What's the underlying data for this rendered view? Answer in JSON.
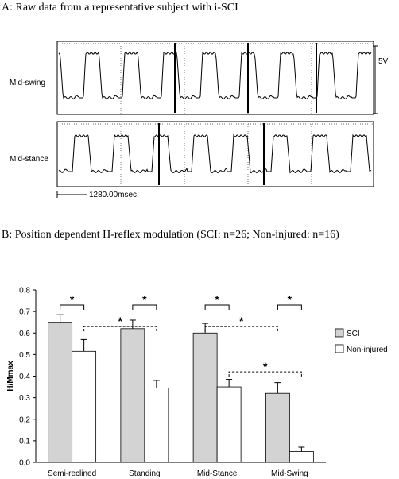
{
  "panel_a": {
    "title": "A: Raw data from a representative subject with i-SCI",
    "top_trace_label": "Mid-swing",
    "bottom_trace_label": "Mid-stance",
    "voltage_scale": "5V",
    "time_scale": "1280.00msec."
  },
  "panel_b": {
    "title": "B: Position dependent H-reflex modulation (SCI: n=26; Non-injured: n=16)"
  },
  "colors": {
    "sci": "#d3d3d3",
    "non_injured": "#ffffff",
    "trace": "#000000"
  },
  "chart_data": {
    "type": "bar",
    "categories": [
      "Semi-reclined",
      "Standing",
      "Mid-Stance",
      "Mid-Swing"
    ],
    "ylabel": "H/Mmax",
    "ylim": [
      0,
      0.8
    ],
    "yticks": [
      "0.0",
      "0.1",
      "0.2",
      "0.3",
      "0.4",
      "0.5",
      "0.6",
      "0.7",
      "0.8"
    ],
    "legend_position": "right",
    "series": [
      {
        "name": "SCI",
        "values": [
          0.65,
          0.62,
          0.6,
          0.32
        ],
        "errors": [
          0.035,
          0.04,
          0.045,
          0.05
        ]
      },
      {
        "name": "Non-injured",
        "values": [
          0.515,
          0.345,
          0.35,
          0.05
        ],
        "errors": [
          0.055,
          0.035,
          0.035,
          0.02
        ]
      }
    ],
    "significance": [
      {
        "from": "Semi-reclined SCI",
        "to": "Semi-reclined Non-injured",
        "style": "solid",
        "y": 0.73,
        "label": "*"
      },
      {
        "from": "Standing SCI",
        "to": "Standing Non-injured",
        "style": "solid",
        "y": 0.73,
        "label": "*"
      },
      {
        "from": "Mid-Stance SCI",
        "to": "Mid-Stance Non-injured",
        "style": "solid",
        "y": 0.73,
        "label": "*"
      },
      {
        "from": "Mid-Swing SCI",
        "to": "Mid-Swing Non-injured",
        "style": "solid",
        "y": 0.73,
        "label": "*"
      },
      {
        "from": "Semi-reclined Non-injured",
        "to": "Standing Non-injured",
        "style": "dashed",
        "y": 0.63,
        "label": "*"
      },
      {
        "from": "Mid-Stance SCI",
        "to": "Mid-Swing SCI",
        "style": "dashed",
        "y": 0.63,
        "label": "*"
      },
      {
        "from": "Mid-Stance Non-injured",
        "to": "Mid-Swing Non-injured",
        "style": "dashed",
        "y": 0.42,
        "label": "*"
      }
    ]
  }
}
